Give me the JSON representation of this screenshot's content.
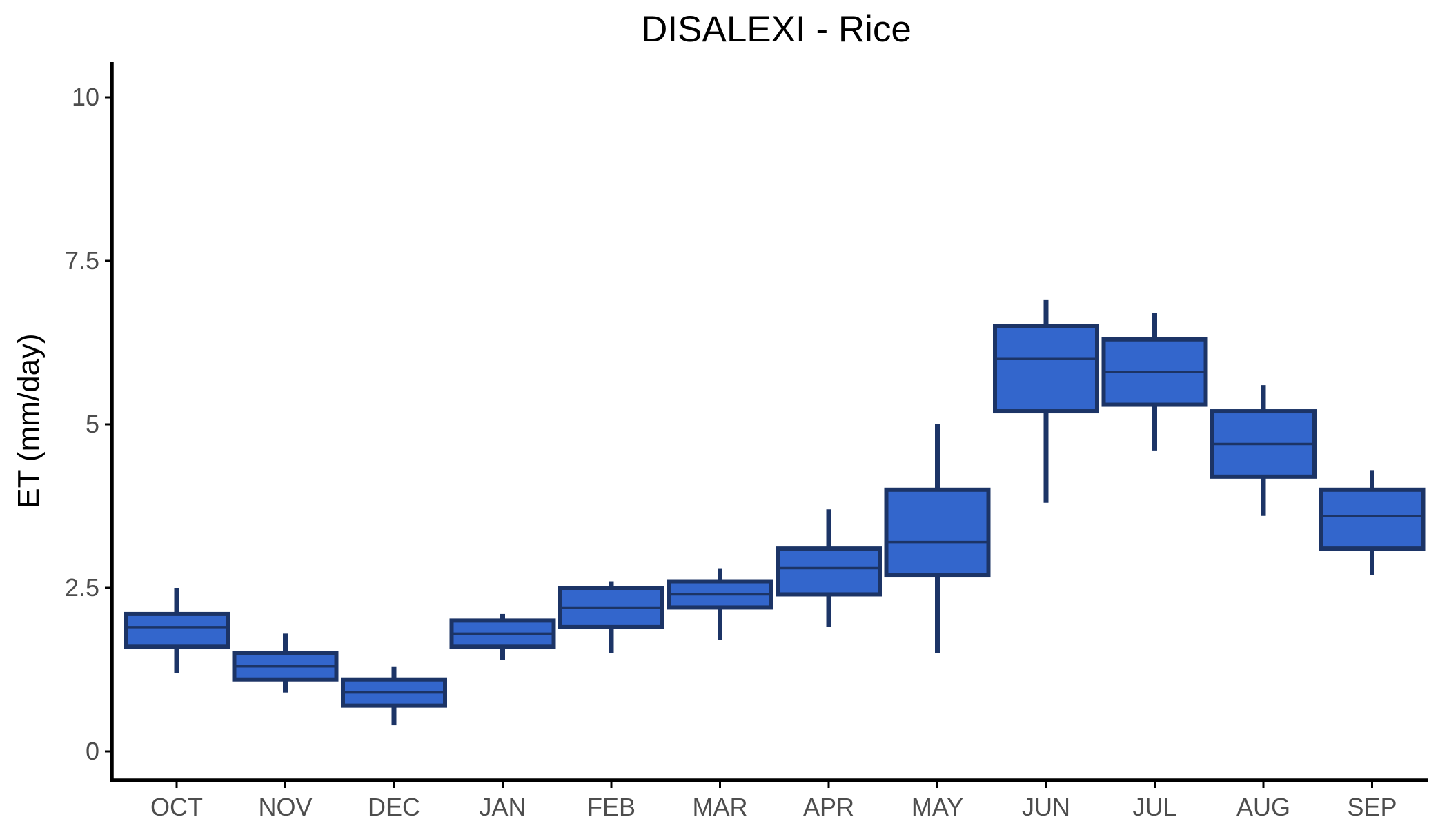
{
  "chart_data": {
    "type": "boxplot",
    "title": "DISALEXI - Rice",
    "xlabel": "",
    "ylabel": "ET (mm/day)",
    "ylim": [
      -0.5,
      10.5
    ],
    "yticks": [
      0,
      2.5,
      5,
      7.5,
      10
    ],
    "ytick_labels": [
      "0",
      "2.5",
      "5",
      "7.5",
      "10"
    ],
    "grid": false,
    "legend": "none",
    "colors": {
      "box_fill": "#3366cc",
      "box_stroke": "#1c3466"
    },
    "categories": [
      "OCT",
      "NOV",
      "DEC",
      "JAN",
      "FEB",
      "MAR",
      "APR",
      "MAY",
      "JUN",
      "JUL",
      "AUG",
      "SEP"
    ],
    "boxes": [
      {
        "min": 1.2,
        "q1": 1.6,
        "median": 1.9,
        "q3": 2.1,
        "max": 2.5
      },
      {
        "min": 0.9,
        "q1": 1.1,
        "median": 1.3,
        "q3": 1.5,
        "max": 1.8
      },
      {
        "min": 0.4,
        "q1": 0.7,
        "median": 0.9,
        "q3": 1.1,
        "max": 1.3
      },
      {
        "min": 1.4,
        "q1": 1.6,
        "median": 1.8,
        "q3": 2.0,
        "max": 2.1
      },
      {
        "min": 1.5,
        "q1": 1.9,
        "median": 2.2,
        "q3": 2.5,
        "max": 2.6
      },
      {
        "min": 1.7,
        "q1": 2.2,
        "median": 2.4,
        "q3": 2.6,
        "max": 2.8
      },
      {
        "min": 1.9,
        "q1": 2.4,
        "median": 2.8,
        "q3": 3.1,
        "max": 3.7
      },
      {
        "min": 1.5,
        "q1": 2.7,
        "median": 3.2,
        "q3": 4.0,
        "max": 5.0
      },
      {
        "min": 3.8,
        "q1": 5.2,
        "median": 6.0,
        "q3": 6.5,
        "max": 6.9
      },
      {
        "min": 4.6,
        "q1": 5.3,
        "median": 5.8,
        "q3": 6.3,
        "max": 6.7
      },
      {
        "min": 3.6,
        "q1": 4.2,
        "median": 4.7,
        "q3": 5.2,
        "max": 5.6
      },
      {
        "min": 2.7,
        "q1": 3.1,
        "median": 3.6,
        "q3": 4.0,
        "max": 4.3
      }
    ]
  }
}
